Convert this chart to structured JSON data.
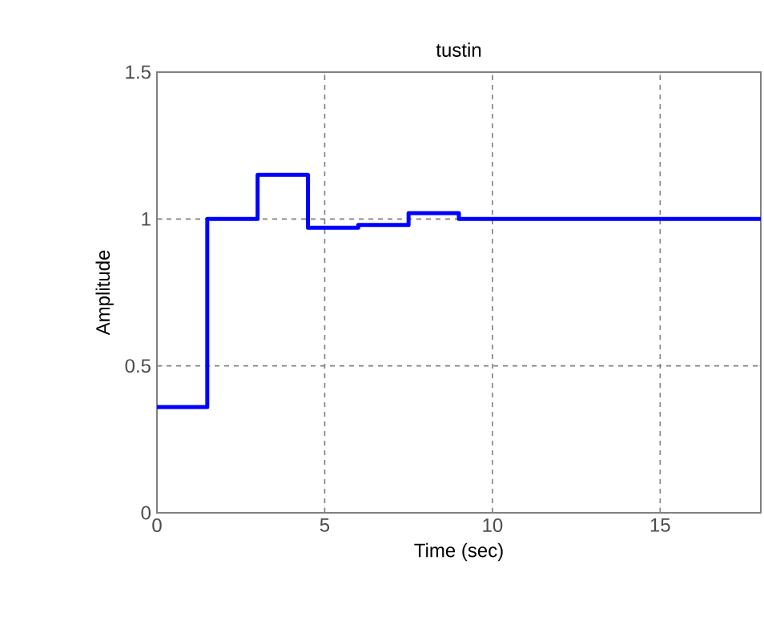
{
  "chart_data": {
    "type": "step",
    "title": "tustin",
    "xlabel": "Time (sec)",
    "ylabel": "Amplitude",
    "x": [
      0,
      1.5,
      3,
      4.5,
      6,
      7.5,
      9,
      18
    ],
    "series": [
      {
        "color": "#0000ff",
        "values": [
          0.36,
          1.0,
          1.15,
          0.97,
          0.98,
          1.02,
          1.0,
          1.0
        ]
      }
    ],
    "xlim": [
      0,
      18
    ],
    "ylim": [
      0,
      1.5
    ],
    "xticks": [
      0,
      5,
      10,
      15
    ],
    "yticks": [
      0,
      0.5,
      1,
      1.5
    ],
    "grid": true,
    "line_style": "solid"
  }
}
